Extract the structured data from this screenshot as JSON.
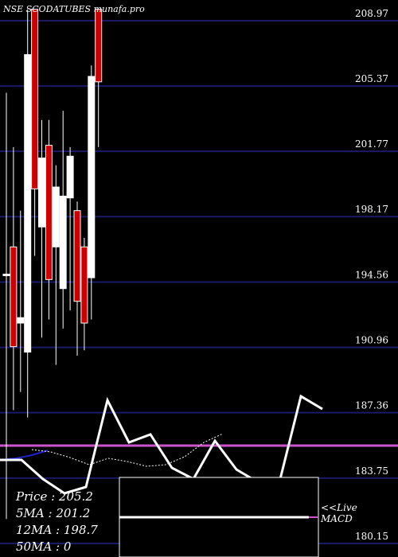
{
  "chart_data": {
    "type": "candlestick",
    "title": "NSE SCODATUBES munafa.pro",
    "price_axis": {
      "ticks": [
        208.97,
        205.37,
        201.77,
        198.17,
        194.56,
        190.96,
        187.36,
        183.75,
        180.15
      ],
      "range": [
        179.98,
        209.63
      ]
    },
    "candles": [
      {
        "o": 195.0,
        "h": 205.0,
        "l": 181.5,
        "c": 195.0,
        "color": "white"
      },
      {
        "o": 191.0,
        "h": 202.0,
        "l": 187.5,
        "c": 196.5,
        "color": "red"
      },
      {
        "o": 192.3,
        "h": 198.5,
        "l": 188.5,
        "c": 192.6,
        "color": "white"
      },
      {
        "o": 190.7,
        "h": 209.6,
        "l": 187.1,
        "c": 207.1,
        "color": "white"
      },
      {
        "o": 209.6,
        "h": 209.6,
        "l": 196.0,
        "c": 199.7,
        "color": "red"
      },
      {
        "o": 197.6,
        "h": 203.5,
        "l": 191.5,
        "c": 201.4,
        "color": "white"
      },
      {
        "o": 202.1,
        "h": 203.5,
        "l": 192.5,
        "c": 194.7,
        "color": "red"
      },
      {
        "o": 199.8,
        "h": 201.0,
        "l": 190.0,
        "c": 196.5,
        "color": "white"
      },
      {
        "o": 199.3,
        "h": 204.0,
        "l": 192.0,
        "c": 194.2,
        "color": "white"
      },
      {
        "o": 201.5,
        "h": 202.0,
        "l": 193.0,
        "c": 199.2,
        "color": "white"
      },
      {
        "o": 198.5,
        "h": 199.0,
        "l": 190.5,
        "c": 193.5,
        "color": "red"
      },
      {
        "o": 196.5,
        "h": 197.0,
        "l": 190.8,
        "c": 192.3,
        "color": "red"
      },
      {
        "o": 194.8,
        "h": 206.5,
        "l": 192.5,
        "c": 205.9,
        "color": "white"
      },
      {
        "o": 209.6,
        "h": 209.6,
        "l": 202.0,
        "c": 205.6,
        "color": "red"
      }
    ],
    "lower_line": {
      "color": "#ffffff",
      "points_y": [
        578,
        578,
        602,
        620,
        612,
        503,
        556,
        546,
        588,
        602,
        554,
        590,
        606,
        606,
        498,
        514
      ],
      "label": "Live"
    },
    "dotted_line": {
      "color": "#ffffff",
      "points_y": [
        565,
        568,
        575,
        584,
        576,
        580,
        586,
        584,
        574,
        556,
        545
      ]
    },
    "ma_line": {
      "color": "#2222cc",
      "points_y": [
        578,
        576,
        572,
        566
      ]
    },
    "purple_line": {
      "color": "#cc55cc"
    },
    "indicator": {
      "label": "MACD",
      "line_color": "#ffffff",
      "signal_color": "#cc55cc"
    }
  },
  "legend": {
    "price": "Price   : 205.2",
    "ma5": "5MA : 201.2",
    "ma12": "12MA : 198.7",
    "ma50": "50MA : 0"
  },
  "live_label": "<<Live",
  "macd_label": "MACD"
}
